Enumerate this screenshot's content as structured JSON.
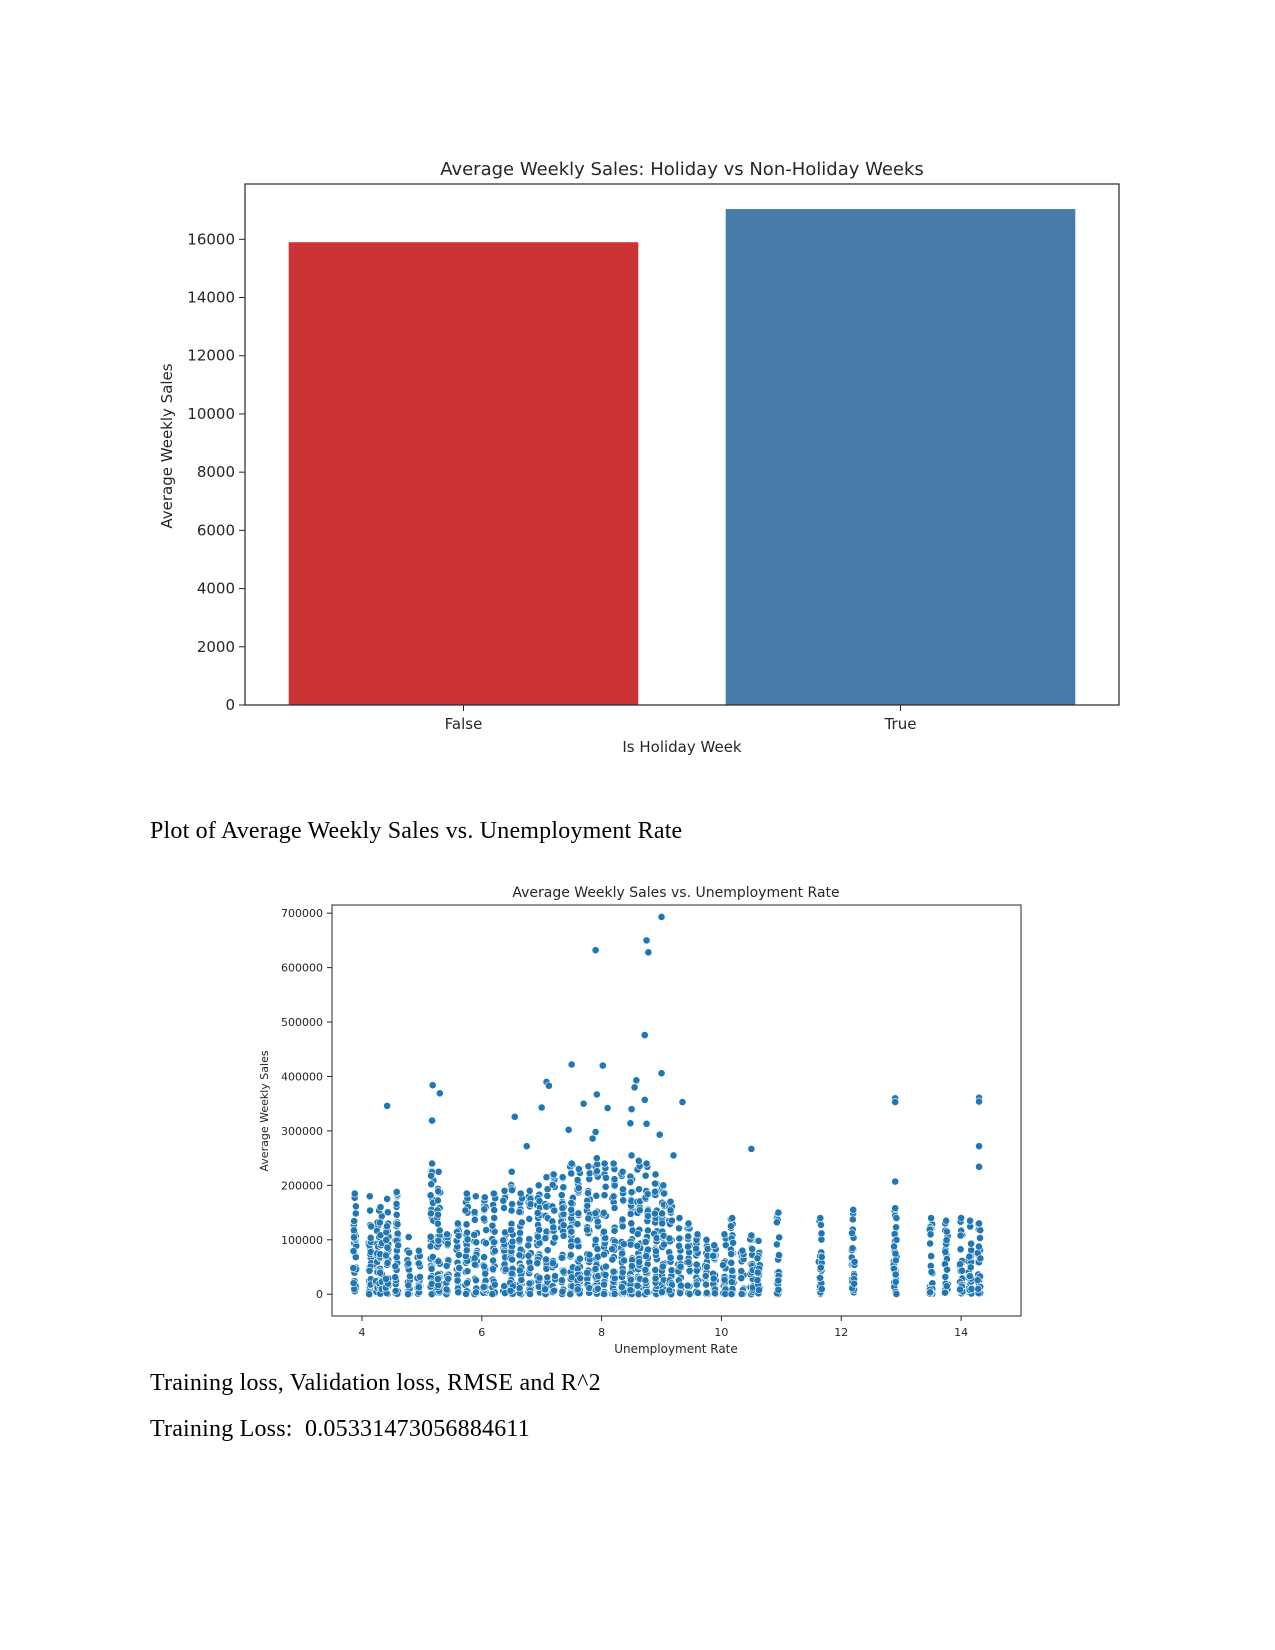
{
  "text": {
    "caption_scatter": "Plot of Average Weekly Sales vs. Unemployment Rate",
    "heading_metrics": "Training loss, Validation loss, RMSE and R^2",
    "training_loss_label": "Training Loss:",
    "training_loss_value": "0.05331473056884611"
  },
  "chart_data": [
    {
      "type": "bar",
      "title": "Average Weekly Sales: Holiday vs Non-Holiday Weeks",
      "xlabel": "Is Holiday Week",
      "ylabel": "Average Weekly Sales",
      "categories": [
        "False",
        "True"
      ],
      "values": [
        15900,
        17040
      ],
      "colors": [
        "#cb3335",
        "#477ca8"
      ],
      "ylim": [
        0,
        17900
      ],
      "yticks": [
        0,
        2000,
        4000,
        6000,
        8000,
        10000,
        12000,
        14000,
        16000
      ],
      "grid": false
    },
    {
      "type": "scatter",
      "title": "Average Weekly Sales vs. Unemployment Rate",
      "xlabel": "Unemployment Rate",
      "ylabel": "Average Weekly Sales",
      "xlim": [
        3.5,
        15
      ],
      "ylim": [
        -40000,
        715000
      ],
      "xticks": [
        4,
        6,
        8,
        10,
        12,
        14
      ],
      "yticks": [
        0,
        100000,
        200000,
        300000,
        400000,
        500000,
        600000,
        700000
      ],
      "color": "#1f77b4",
      "grid": false,
      "columns": [
        {
          "x": 3.88,
          "max": 185000
        },
        {
          "x": 4.13,
          "max": 180000
        },
        {
          "x": 4.26,
          "max": 132000
        },
        {
          "x": 4.31,
          "max": 160000
        },
        {
          "x": 4.42,
          "max": 175000
        },
        {
          "x": 4.58,
          "max": 188000
        },
        {
          "x": 4.78,
          "max": 105000
        },
        {
          "x": 4.95,
          "max": 80000
        },
        {
          "x": 5.17,
          "max": 240000
        },
        {
          "x": 5.28,
          "max": 225000
        },
        {
          "x": 5.42,
          "max": 110000
        },
        {
          "x": 5.6,
          "max": 130000
        },
        {
          "x": 5.75,
          "max": 185000
        },
        {
          "x": 5.9,
          "max": 180000
        },
        {
          "x": 6.05,
          "max": 178000
        },
        {
          "x": 6.2,
          "max": 185000
        },
        {
          "x": 6.38,
          "max": 190000
        },
        {
          "x": 6.5,
          "max": 225000
        },
        {
          "x": 6.65,
          "max": 185000
        },
        {
          "x": 6.8,
          "max": 190000
        },
        {
          "x": 6.95,
          "max": 200000
        },
        {
          "x": 7.08,
          "max": 215000
        },
        {
          "x": 7.2,
          "max": 220000
        },
        {
          "x": 7.35,
          "max": 215000
        },
        {
          "x": 7.5,
          "max": 240000
        },
        {
          "x": 7.62,
          "max": 230000
        },
        {
          "x": 7.78,
          "max": 235000
        },
        {
          "x": 7.92,
          "max": 250000
        },
        {
          "x": 8.05,
          "max": 240000
        },
        {
          "x": 8.2,
          "max": 240000
        },
        {
          "x": 8.35,
          "max": 225000
        },
        {
          "x": 8.5,
          "max": 255000
        },
        {
          "x": 8.62,
          "max": 245000
        },
        {
          "x": 8.75,
          "max": 240000
        },
        {
          "x": 8.9,
          "max": 220000
        },
        {
          "x": 9.03,
          "max": 200000
        },
        {
          "x": 9.15,
          "max": 170000
        },
        {
          "x": 9.3,
          "max": 140000
        },
        {
          "x": 9.45,
          "max": 130000
        },
        {
          "x": 9.6,
          "max": 110000
        },
        {
          "x": 9.75,
          "max": 100000
        },
        {
          "x": 9.88,
          "max": 90000
        },
        {
          "x": 10.05,
          "max": 110000
        },
        {
          "x": 10.18,
          "max": 140000
        },
        {
          "x": 10.35,
          "max": 80000
        },
        {
          "x": 10.5,
          "max": 108000
        },
        {
          "x": 10.62,
          "max": 98000
        },
        {
          "x": 10.95,
          "max": 150000
        },
        {
          "x": 11.65,
          "max": 140000
        },
        {
          "x": 12.2,
          "max": 155000
        },
        {
          "x": 12.9,
          "max": 158000
        },
        {
          "x": 13.5,
          "max": 140000
        },
        {
          "x": 13.75,
          "max": 135000
        },
        {
          "x": 14.0,
          "max": 140000
        },
        {
          "x": 14.15,
          "max": 135000
        },
        {
          "x": 14.3,
          "max": 130000
        }
      ],
      "outliers": [
        [
          9.0,
          693000
        ],
        [
          8.75,
          650000
        ],
        [
          7.9,
          632000
        ],
        [
          8.78,
          628000
        ],
        [
          8.72,
          476000
        ],
        [
          7.5,
          422000
        ],
        [
          8.02,
          420000
        ],
        [
          9.0,
          406000
        ],
        [
          7.08,
          390000
        ],
        [
          8.58,
          393000
        ],
        [
          5.18,
          384000
        ],
        [
          7.12,
          383000
        ],
        [
          8.55,
          380000
        ],
        [
          5.3,
          369000
        ],
        [
          7.92,
          367000
        ],
        [
          8.72,
          357000
        ],
        [
          9.35,
          353000
        ],
        [
          12.9,
          360000
        ],
        [
          12.9,
          353000
        ],
        [
          14.3,
          361000
        ],
        [
          14.3,
          354000
        ],
        [
          4.42,
          346000
        ],
        [
          7.0,
          343000
        ],
        [
          7.7,
          350000
        ],
        [
          8.1,
          342000
        ],
        [
          8.5,
          340000
        ],
        [
          6.55,
          326000
        ],
        [
          5.17,
          319000
        ],
        [
          8.48,
          314000
        ],
        [
          8.75,
          313000
        ],
        [
          7.45,
          302000
        ],
        [
          7.9,
          298000
        ],
        [
          8.97,
          293000
        ],
        [
          10.5,
          267000
        ],
        [
          14.3,
          272000
        ],
        [
          14.3,
          234000
        ],
        [
          12.9,
          207000
        ],
        [
          9.2,
          255000
        ],
        [
          6.75,
          272000
        ],
        [
          7.85,
          286000
        ]
      ]
    }
  ]
}
